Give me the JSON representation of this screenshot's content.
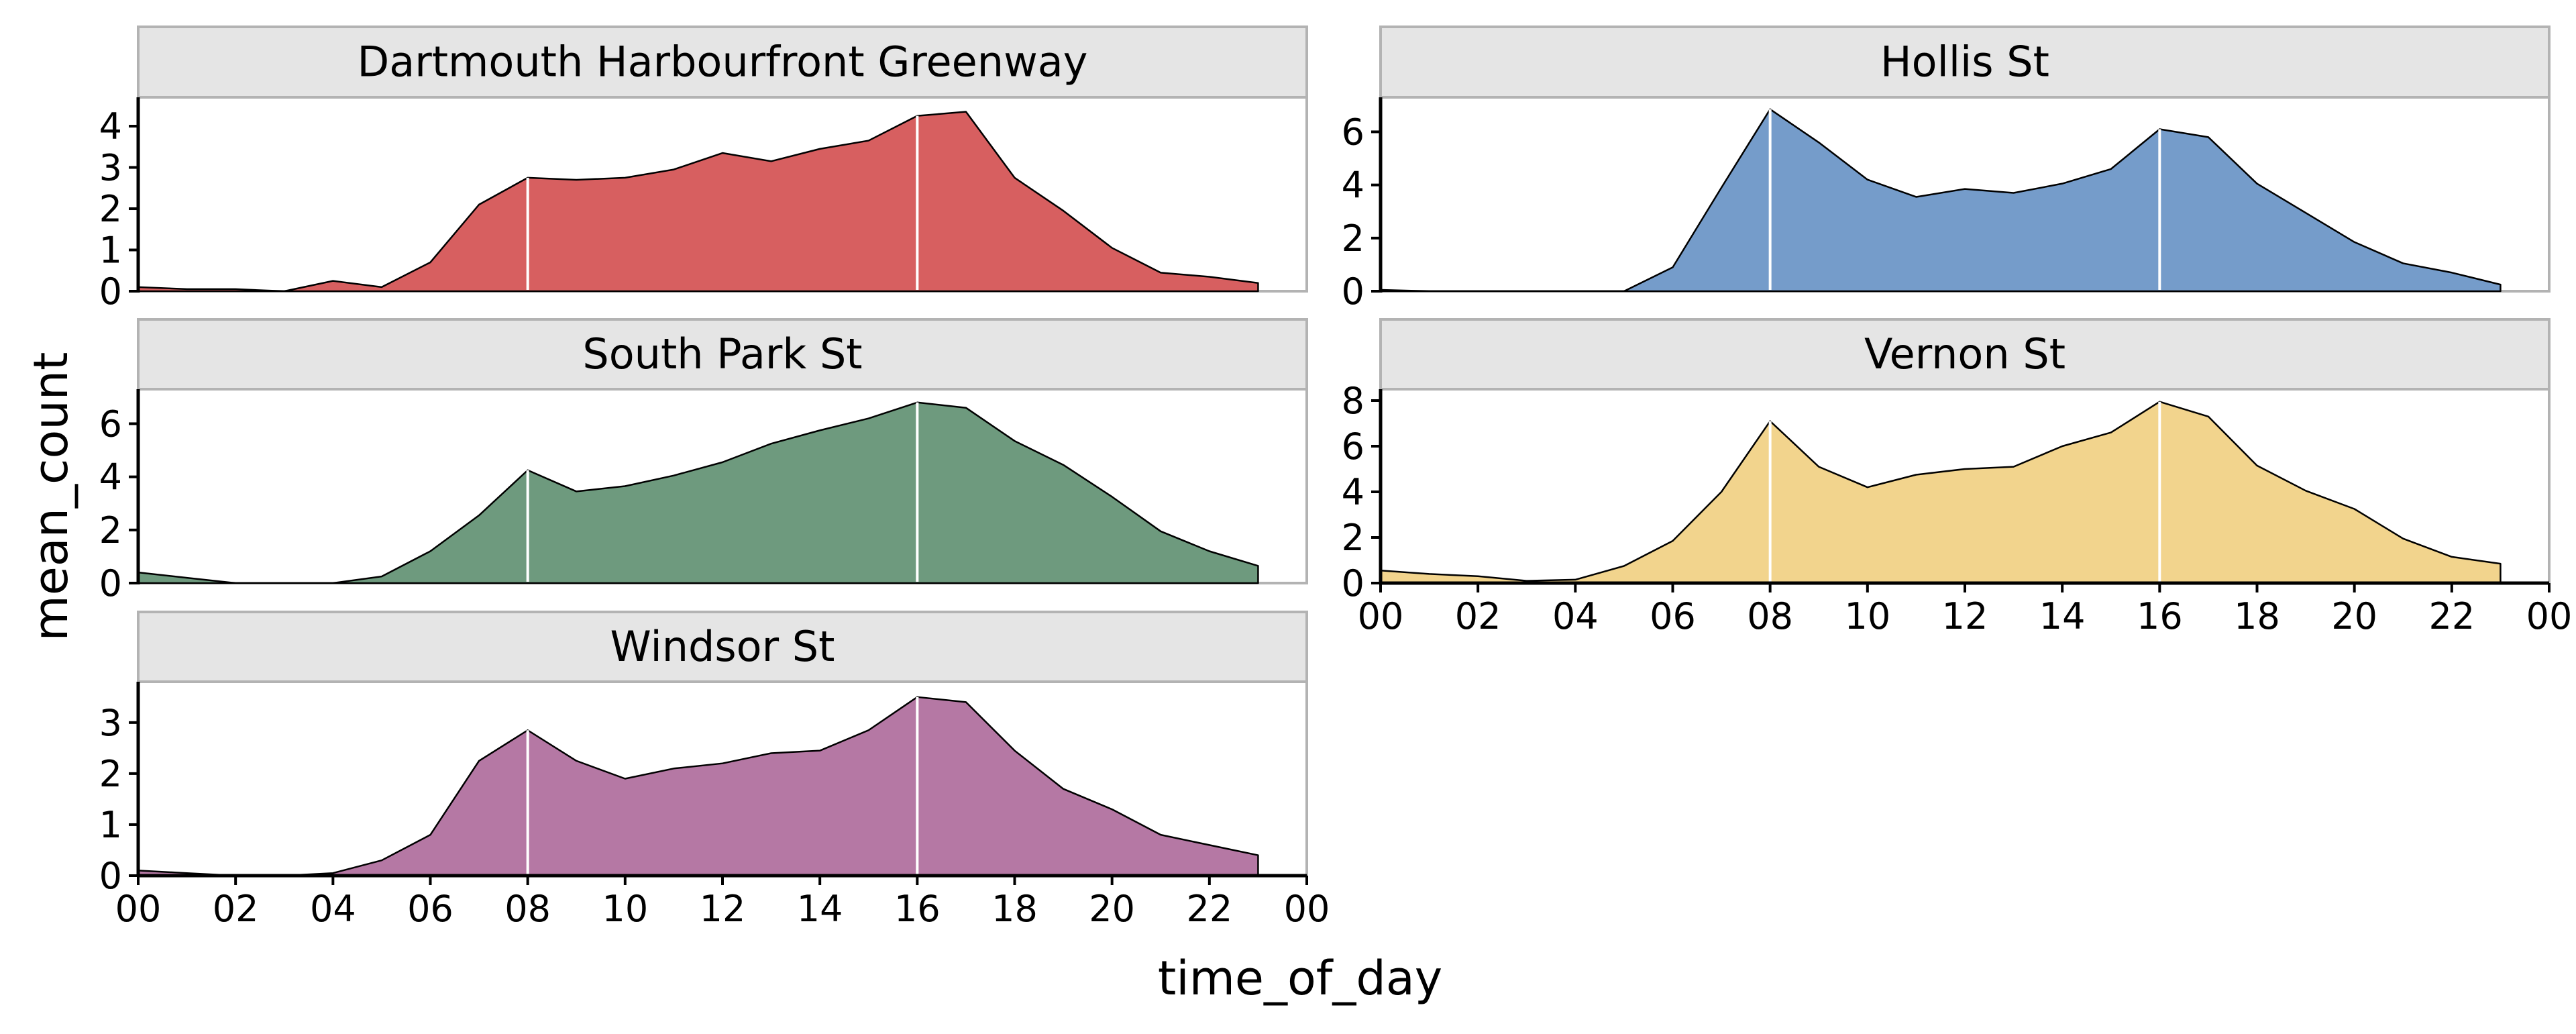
{
  "chart_data": {
    "type": "area",
    "xlabel": "time_of_day",
    "ylabel": "mean_count",
    "x_tick_labels": [
      "00",
      "02",
      "04",
      "06",
      "08",
      "10",
      "12",
      "14",
      "16",
      "18",
      "20",
      "22",
      "00"
    ],
    "xlim": [
      0,
      24
    ],
    "hours": [
      0,
      1,
      2,
      3,
      4,
      5,
      6,
      7,
      8,
      9,
      10,
      11,
      12,
      13,
      14,
      15,
      16,
      17,
      18,
      19,
      20,
      21,
      22,
      23
    ],
    "reference_hours": [
      8,
      16
    ],
    "grid": false,
    "facets": [
      {
        "title": "Dartmouth Harbourfront Greenway",
        "color": "#D75F60",
        "ylim": [
          0,
          4.7
        ],
        "y_ticks": [
          0,
          1,
          2,
          3,
          4
        ],
        "values": [
          0.1,
          0.05,
          0.05,
          0.0,
          0.25,
          0.1,
          0.7,
          2.1,
          2.75,
          2.7,
          2.75,
          2.95,
          3.35,
          3.15,
          3.45,
          3.65,
          4.25,
          4.35,
          2.75,
          1.95,
          1.05,
          0.45,
          0.35,
          0.2
        ]
      },
      {
        "title": "Hollis St",
        "color": "#759CCA",
        "ylim": [
          0,
          7.3
        ],
        "y_ticks": [
          0,
          2,
          4,
          6
        ],
        "values": [
          0.05,
          0.0,
          0.0,
          0.0,
          0.0,
          0.0,
          0.9,
          3.9,
          6.85,
          5.6,
          4.2,
          3.55,
          3.85,
          3.7,
          4.05,
          4.6,
          6.1,
          5.8,
          4.05,
          2.95,
          1.85,
          1.05,
          0.7,
          0.25
        ]
      },
      {
        "title": "South Park St",
        "color": "#6E9A7E",
        "ylim": [
          0,
          7.3
        ],
        "y_ticks": [
          0,
          2,
          4,
          6
        ],
        "values": [
          0.4,
          0.2,
          0.0,
          0.0,
          0.0,
          0.25,
          1.2,
          2.55,
          4.25,
          3.45,
          3.65,
          4.05,
          4.55,
          5.25,
          5.75,
          6.2,
          6.8,
          6.6,
          5.35,
          4.45,
          3.25,
          1.95,
          1.2,
          0.65
        ]
      },
      {
        "title": "Vernon St",
        "color": "#F2D48D",
        "ylim": [
          0,
          8.5
        ],
        "y_ticks": [
          0,
          2,
          4,
          6,
          8
        ],
        "values": [
          0.55,
          0.4,
          0.3,
          0.1,
          0.15,
          0.75,
          1.85,
          4.0,
          7.1,
          5.1,
          4.2,
          4.75,
          5.0,
          5.1,
          6.0,
          6.6,
          7.95,
          7.3,
          5.15,
          4.05,
          3.25,
          1.95,
          1.15,
          0.85
        ]
      },
      {
        "title": "Windsor St",
        "color": "#B578A4",
        "ylim": [
          0,
          3.8
        ],
        "y_ticks": [
          0,
          1,
          2,
          3
        ],
        "values": [
          0.1,
          0.05,
          0.0,
          0.0,
          0.05,
          0.3,
          0.8,
          2.25,
          2.85,
          2.25,
          1.9,
          2.1,
          2.2,
          2.4,
          2.45,
          2.85,
          3.5,
          3.4,
          2.45,
          1.7,
          1.3,
          0.8,
          0.6,
          0.4
        ]
      }
    ]
  }
}
